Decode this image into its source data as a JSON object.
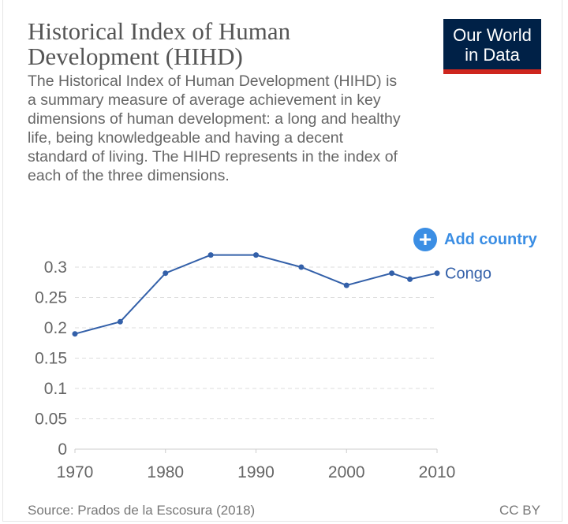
{
  "header": {
    "title": "Historical Index of Human Development (HIHD)",
    "subtitle": "The Historical Index of Human Development (HIHD) is a summary measure of average achievement in key dimensions of human development: a long and healthy life, being knowledgeable and having a decent standard of living. The HIHD represents in the index of each of the three dimensions."
  },
  "logo": {
    "line1": "Our World",
    "line2": "in Data",
    "bg_color": "#002147",
    "accent_color": "#ce261e"
  },
  "controls": {
    "add_country_label": "Add country",
    "add_icon": "plus-circle-icon"
  },
  "chart_data": {
    "type": "line",
    "title": "Historical Index of Human Development (HIHD)",
    "xlabel": "",
    "ylabel": "",
    "xlim": [
      1970,
      2010
    ],
    "ylim": [
      0,
      0.3
    ],
    "x_ticks": [
      "1970",
      "1980",
      "1990",
      "2000",
      "2010"
    ],
    "y_ticks": [
      "0",
      "0.05",
      "0.1",
      "0.15",
      "0.2",
      "0.25",
      "0.3"
    ],
    "grid": "horizontal dashed",
    "legend": "inline at line end",
    "series": [
      {
        "name": "Congo",
        "color": "#3360a9",
        "x": [
          1970,
          1975,
          1980,
          1985,
          1990,
          1995,
          2000,
          2005,
          2007,
          2010
        ],
        "y": [
          0.19,
          0.21,
          0.29,
          0.32,
          0.32,
          0.3,
          0.27,
          0.29,
          0.28,
          0.29
        ]
      }
    ]
  },
  "footer": {
    "source": "Source: Prados de la Escosura (2018)",
    "license": "CC BY"
  }
}
